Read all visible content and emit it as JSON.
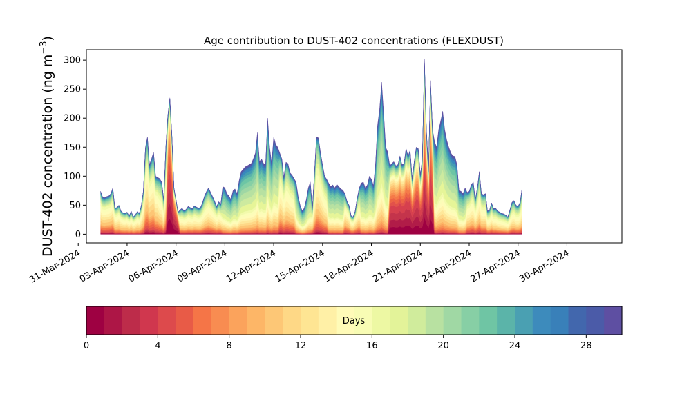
{
  "chart_data": [
    {
      "type": "area",
      "subtype": "stacked",
      "title": "Age contribution to DUST-402 concentrations (FLEXDUST)",
      "ylabel": "DUST-402 concentration (ng m",
      "ylabel_sup": "−3",
      "ylabel_close": ")",
      "ylim": [
        -15,
        318
      ],
      "yticks": [
        0,
        50,
        100,
        150,
        200,
        250,
        300
      ],
      "ytick_labels": [
        "0",
        "50",
        "100",
        "150",
        "200",
        "250",
        "300"
      ],
      "xlim": [
        "2024-03-31T12:00",
        "2024-05-03T09:00"
      ],
      "xticks": [
        "2024-03-31",
        "2024-04-03",
        "2024-04-06",
        "2024-04-09",
        "2024-04-12",
        "2024-04-15",
        "2024-04-18",
        "2024-04-21",
        "2024-04-24",
        "2024-04-27",
        "2024-04-30"
      ],
      "xtick_labels": [
        "31-Mar-2024",
        "03-Apr-2024",
        "06-Apr-2024",
        "09-Apr-2024",
        "12-Apr-2024",
        "15-Apr-2024",
        "18-Apr-2024",
        "21-Apr-2024",
        "24-Apr-2024",
        "27-Apr-2024",
        "30-Apr-2024"
      ],
      "grid": false,
      "x_start": "2024-04-01T09:00",
      "x_step_hours": 3,
      "total": [
        74,
        64,
        63,
        65,
        66,
        70,
        80,
        45,
        46,
        50,
        40,
        37,
        36,
        38,
        31,
        40,
        30,
        33,
        39,
        36,
        50,
        75,
        150,
        168,
        120,
        130,
        142,
        100,
        98,
        96,
        90,
        60,
        150,
        205,
        235,
        170,
        80,
        60,
        38,
        42,
        45,
        40,
        43,
        48,
        46,
        44,
        49,
        47,
        45,
        46,
        54,
        66,
        74,
        80,
        72,
        65,
        57,
        48,
        56,
        52,
        82,
        80,
        70,
        66,
        60,
        75,
        78,
        70,
        92,
        108,
        112,
        116,
        118,
        120,
        122,
        130,
        140,
        175,
        125,
        130,
        122,
        120,
        200,
        150,
        122,
        168,
        155,
        150,
        140,
        130,
        98,
        124,
        122,
        106,
        102,
        96,
        90,
        65,
        50,
        40,
        45,
        60,
        80,
        90,
        45,
        105,
        168,
        166,
        140,
        120,
        100,
        95,
        88,
        82,
        85,
        80,
        86,
        82,
        78,
        76,
        70,
        57,
        50,
        32,
        30,
        40,
        62,
        80,
        88,
        90,
        80,
        85,
        100,
        95,
        84,
        120,
        188,
        215,
        262,
        210,
        150,
        142,
        118,
        122,
        125,
        118,
        120,
        135,
        120,
        122,
        148,
        135,
        145,
        96,
        125,
        150,
        148,
        102,
        130,
        302,
        180,
        110,
        265,
        180,
        160,
        150,
        180,
        195,
        212,
        180,
        162,
        150,
        140,
        135,
        134,
        120,
        75,
        74,
        70,
        80,
        72,
        74,
        85,
        90,
        60,
        80,
        108,
        70,
        68,
        70,
        40,
        42,
        54,
        44,
        45,
        40,
        38,
        36,
        35,
        33,
        30,
        42,
        55,
        58,
        50,
        48,
        55,
        80
      ],
      "band_fracs": [
        [
          0.06,
          0.1,
          0.08,
          0.22,
          0.28,
          0.1,
          0.08,
          0.05,
          0.03
        ],
        [
          0.04,
          0.08,
          0.08,
          0.24,
          0.3,
          0.12,
          0.08,
          0.04,
          0.02
        ],
        [
          0.06,
          0.1,
          0.08,
          0.22,
          0.28,
          0.1,
          0.08,
          0.05,
          0.03
        ],
        [
          0.05,
          0.08,
          0.07,
          0.18,
          0.3,
          0.15,
          0.09,
          0.05,
          0.03
        ],
        [
          0.02,
          0.03,
          0.05,
          0.1,
          0.14,
          0.28,
          0.2,
          0.12,
          0.06
        ],
        [
          0.05,
          0.08,
          0.07,
          0.18,
          0.3,
          0.15,
          0.09,
          0.05,
          0.03
        ],
        [
          0.02,
          0.03,
          0.05,
          0.1,
          0.14,
          0.28,
          0.2,
          0.12,
          0.06
        ],
        [
          0.45,
          0.2,
          0.1,
          0.08,
          0.06,
          0.05,
          0.03,
          0.02,
          0.01
        ],
        [
          0.05,
          0.08,
          0.07,
          0.18,
          0.3,
          0.15,
          0.09,
          0.05,
          0.03
        ],
        [
          0.02,
          0.03,
          0.05,
          0.1,
          0.14,
          0.28,
          0.2,
          0.12,
          0.06
        ],
        [
          0.4,
          0.15,
          0.1,
          0.1,
          0.08,
          0.07,
          0.05,
          0.03,
          0.02
        ],
        [
          0.4,
          0.2,
          0.12,
          0.08,
          0.06,
          0.06,
          0.04,
          0.02,
          0.02
        ],
        [
          0.02,
          0.03,
          0.05,
          0.1,
          0.14,
          0.28,
          0.2,
          0.12,
          0.06
        ],
        [
          0.05,
          0.08,
          0.07,
          0.18,
          0.3,
          0.15,
          0.09,
          0.05,
          0.03
        ]
      ],
      "segment_profiles": [
        [
          [
            0,
            7,
            0
          ],
          [
            7,
            22,
            1
          ],
          [
            22,
            29,
            2
          ],
          [
            29,
            33,
            3
          ],
          [
            33,
            39,
            7
          ],
          [
            39,
            53,
            3
          ],
          [
            53,
            60,
            5
          ],
          [
            60,
            88,
            4
          ],
          [
            88,
            96,
            5
          ],
          [
            96,
            104,
            6
          ],
          [
            104,
            112,
            8
          ],
          [
            112,
            120,
            6
          ],
          [
            120,
            126,
            2
          ],
          [
            126,
            128,
            5
          ],
          [
            128,
            134,
            4
          ],
          [
            134,
            142,
            9
          ],
          [
            142,
            160,
            10
          ],
          [
            160,
            164,
            11
          ],
          [
            164,
            172,
            12
          ],
          [
            172,
            180,
            6
          ],
          [
            180,
            208,
            13
          ],
          [
            208,
            212,
            6
          ]
        ]
      ],
      "legend_swatches": [
        "#9e0142",
        "#b11c48",
        "#c4344b",
        "#d6404e",
        "#e2524a",
        "#ed6445",
        "#f57a48",
        "#f88f52",
        "#faa35c",
        "#fdb566",
        "#fdc675",
        "#fed887",
        "#fee89a",
        "#fff3ac",
        "#fffbb9",
        "#fbfdb8",
        "#f2faab",
        "#e6f598",
        "#cdea9f",
        "#b7e1a1",
        "#9fd7a4",
        "#86cfa5",
        "#6dc5a5",
        "#58b1ab",
        "#449db2",
        "#3789bd",
        "#3d75b6",
        "#4660ab",
        "#5e4fa2"
      ],
      "colorbar": {
        "label": "Days",
        "vmin": 0,
        "vmax": 30,
        "ticks": [
          0,
          4,
          8,
          12,
          16,
          20,
          24,
          28
        ],
        "tick_labels": [
          "0",
          "4",
          "8",
          "12",
          "16",
          "20",
          "24",
          "28"
        ],
        "colors": [
          "#9e0142",
          "#ad1646",
          "#bd2c4a",
          "#d0374e",
          "#dd4a4c",
          "#e85b47",
          "#f57547",
          "#f88c51",
          "#fba35c",
          "#fdb667",
          "#fdc776",
          "#fed886",
          "#fee593",
          "#fff0a6",
          "#fffbb8",
          "#f8fcb4",
          "#edf8a3",
          "#e3f399",
          "#d0ec9c",
          "#b8e1a1",
          "#a0d8a4",
          "#87cfa5",
          "#6fc5a4",
          "#5bb4a9",
          "#4aa0b2",
          "#3d8bbc",
          "#3980b9",
          "#4267ad",
          "#4b5ba8",
          "#5e4fa2"
        ]
      }
    }
  ]
}
